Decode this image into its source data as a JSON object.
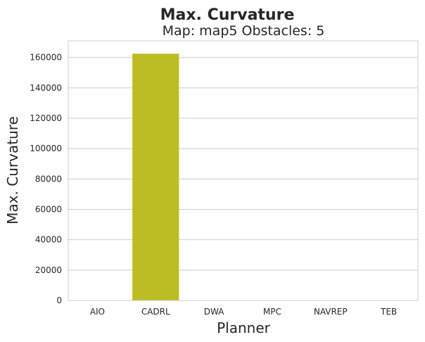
{
  "chart_data": {
    "type": "bar",
    "title": "Max. Curvature",
    "subtitle": "Map: map5 Obstacles: 5",
    "xlabel": "Planner",
    "ylabel": "Max. Curvature",
    "categories": [
      "AIO",
      "CADRL",
      "DWA",
      "MPC",
      "NAVREP",
      "TEB"
    ],
    "values": [
      0,
      162500,
      0,
      0,
      0,
      0
    ],
    "ylim": [
      0,
      171000
    ],
    "yticks": [
      0,
      20000,
      40000,
      60000,
      80000,
      100000,
      120000,
      140000,
      160000
    ],
    "grid": true,
    "bar_color": "#bcbd22"
  }
}
